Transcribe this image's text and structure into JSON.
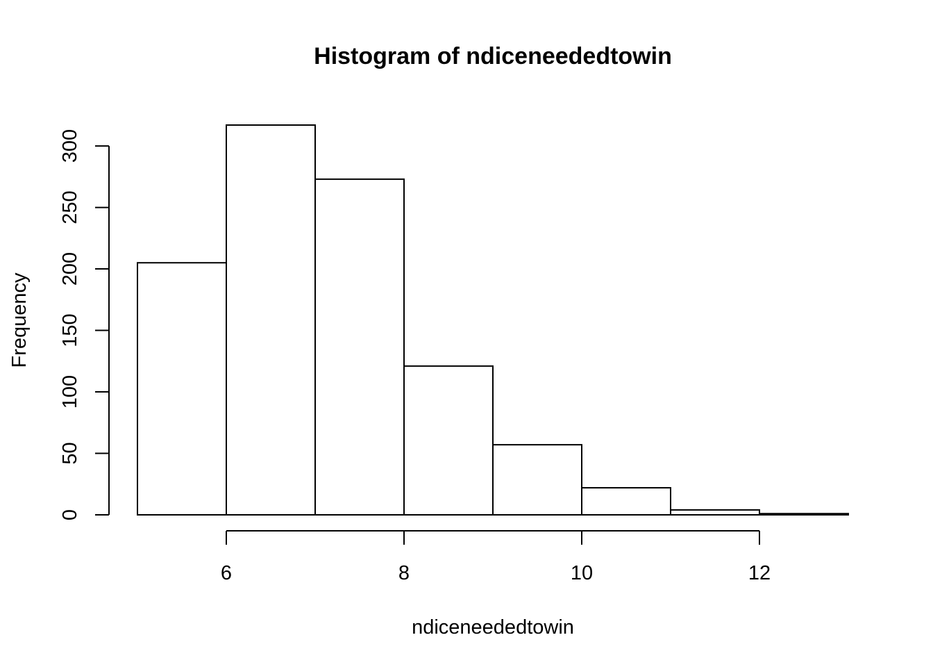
{
  "chart_data": {
    "type": "bar",
    "title": "Histogram of ndiceneededtowin",
    "xlabel": "ndiceneededtowin",
    "ylabel": "Frequency",
    "bins": [
      {
        "start": 5,
        "end": 6,
        "count": 205
      },
      {
        "start": 6,
        "end": 7,
        "count": 317
      },
      {
        "start": 7,
        "end": 8,
        "count": 273
      },
      {
        "start": 8,
        "end": 9,
        "count": 121
      },
      {
        "start": 9,
        "end": 10,
        "count": 57
      },
      {
        "start": 10,
        "end": 11,
        "count": 22
      },
      {
        "start": 11,
        "end": 12,
        "count": 4
      },
      {
        "start": 12,
        "end": 13,
        "count": 1
      }
    ],
    "xlim": [
      5,
      13
    ],
    "ylim": [
      0,
      317
    ],
    "x_ticks": [
      6,
      8,
      10,
      12
    ],
    "x_tick_labels": [
      "6",
      "8",
      "10",
      "12"
    ],
    "y_ticks": [
      0,
      50,
      100,
      150,
      200,
      250,
      300
    ],
    "y_tick_labels": [
      "0",
      "50",
      "100",
      "150",
      "200",
      "250",
      "300"
    ],
    "grid": false,
    "legend": "none",
    "bar_fill": "#ffffff",
    "bar_stroke": "#000000"
  }
}
